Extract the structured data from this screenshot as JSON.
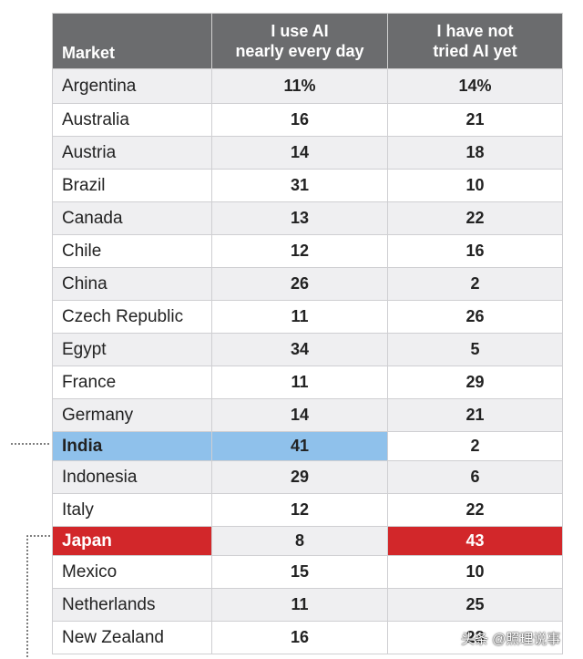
{
  "table": {
    "header": [
      "Market",
      "I use AI\nnearly every day",
      "I have not\ntried AI yet"
    ],
    "rows": [
      [
        "Argentina",
        "11%",
        "14%"
      ],
      [
        "Australia",
        16,
        21
      ],
      [
        "Austria",
        14,
        18
      ],
      [
        "Brazil",
        31,
        10
      ],
      [
        "Canada",
        13,
        22
      ],
      [
        "Chile",
        12,
        16
      ],
      [
        "China",
        26,
        2
      ],
      [
        "Czech Republic",
        11,
        26
      ],
      [
        "Egypt",
        34,
        5
      ],
      [
        "France",
        11,
        29
      ],
      [
        "Germany",
        14,
        21
      ],
      [
        "India",
        41,
        2
      ],
      [
        "Indonesia",
        29,
        6
      ],
      [
        "Italy",
        12,
        22
      ],
      [
        "Japan",
        8,
        43
      ],
      [
        "Mexico",
        15,
        10
      ],
      [
        "Netherlands",
        11,
        25
      ],
      [
        "New Zealand",
        16,
        23
      ]
    ]
  },
  "watermark": "头条 @照理说事"
}
